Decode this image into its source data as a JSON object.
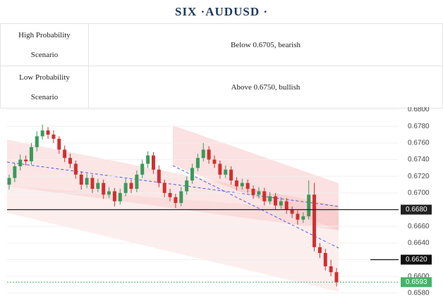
{
  "title": "SIX ·AUDUSD ·",
  "table": {
    "rows": [
      [
        "High Probability Scenario",
        "Below 0.6705, bearish"
      ],
      [
        "Low Probability Scenario",
        "Above 0.6750, bullish"
      ]
    ]
  },
  "chart_data": {
    "type": "candlestick",
    "ylim": [
      0.6568,
      0.6803
    ],
    "yticks": [
      {
        "value": 0.658,
        "label": "0.6580"
      },
      {
        "value": 0.66,
        "label": "0.6600"
      },
      {
        "value": 0.662,
        "label": "0.6620"
      },
      {
        "value": 0.664,
        "label": "0.6640"
      },
      {
        "value": 0.666,
        "label": "0.6660"
      },
      {
        "value": 0.668,
        "label": "0.6680"
      },
      {
        "value": 0.67,
        "label": "0.6700"
      },
      {
        "value": 0.672,
        "label": "0.6720"
      },
      {
        "value": 0.674,
        "label": "0.6740"
      },
      {
        "value": 0.676,
        "label": "0.6760"
      },
      {
        "value": 0.678,
        "label": "0.6780"
      },
      {
        "value": 0.68,
        "label": "0.6800"
      }
    ],
    "grid": true,
    "up_color": "#3a9a5b",
    "down_color": "#d0302f",
    "ohlc": [
      [
        0.671,
        0.6722,
        0.6704,
        0.6718
      ],
      [
        0.6718,
        0.6736,
        0.6713,
        0.6732
      ],
      [
        0.6732,
        0.6746,
        0.6727,
        0.674
      ],
      [
        0.674,
        0.6745,
        0.6733,
        0.6738
      ],
      [
        0.6738,
        0.676,
        0.6734,
        0.6755
      ],
      [
        0.6755,
        0.6774,
        0.675,
        0.6768
      ],
      [
        0.6768,
        0.6782,
        0.6764,
        0.6775
      ],
      [
        0.6775,
        0.6779,
        0.6765,
        0.677
      ],
      [
        0.677,
        0.6775,
        0.676,
        0.6765
      ],
      [
        0.6765,
        0.6768,
        0.6747,
        0.6752
      ],
      [
        0.6752,
        0.6757,
        0.6737,
        0.6742
      ],
      [
        0.6742,
        0.6747,
        0.673,
        0.6735
      ],
      [
        0.6735,
        0.6739,
        0.6717,
        0.6722
      ],
      [
        0.6722,
        0.6726,
        0.6704,
        0.671
      ],
      [
        0.671,
        0.6723,
        0.6706,
        0.6718
      ],
      [
        0.6718,
        0.6722,
        0.67,
        0.6705
      ],
      [
        0.6705,
        0.6717,
        0.6701,
        0.6712
      ],
      [
        0.6712,
        0.6716,
        0.6693,
        0.6698
      ],
      [
        0.6698,
        0.6707,
        0.6694,
        0.6702
      ],
      [
        0.6702,
        0.6706,
        0.6684,
        0.669
      ],
      [
        0.669,
        0.6705,
        0.6686,
        0.67
      ],
      [
        0.67,
        0.6717,
        0.6696,
        0.6712
      ],
      [
        0.6712,
        0.6716,
        0.67,
        0.6705
      ],
      [
        0.6705,
        0.6727,
        0.6701,
        0.6722
      ],
      [
        0.6722,
        0.674,
        0.6718,
        0.6735
      ],
      [
        0.6735,
        0.675,
        0.673,
        0.6745
      ],
      [
        0.6745,
        0.6749,
        0.6723,
        0.6728
      ],
      [
        0.6728,
        0.6733,
        0.6707,
        0.6712
      ],
      [
        0.6712,
        0.6716,
        0.6695,
        0.67
      ],
      [
        0.67,
        0.6705,
        0.669,
        0.6695
      ],
      [
        0.6695,
        0.6699,
        0.6682,
        0.6688
      ],
      [
        0.6688,
        0.6707,
        0.6684,
        0.6702
      ],
      [
        0.6702,
        0.672,
        0.6698,
        0.6715
      ],
      [
        0.6715,
        0.6735,
        0.6711,
        0.673
      ],
      [
        0.673,
        0.6747,
        0.6726,
        0.6742
      ],
      [
        0.6742,
        0.676,
        0.6738,
        0.6752
      ],
      [
        0.6752,
        0.6756,
        0.6735,
        0.674
      ],
      [
        0.674,
        0.6745,
        0.673,
        0.6735
      ],
      [
        0.6735,
        0.6739,
        0.6717,
        0.6722
      ],
      [
        0.6722,
        0.6733,
        0.6718,
        0.6728
      ],
      [
        0.6728,
        0.6732,
        0.671,
        0.6715
      ],
      [
        0.6715,
        0.6719,
        0.6703,
        0.6708
      ],
      [
        0.6708,
        0.6717,
        0.6704,
        0.6712
      ],
      [
        0.6712,
        0.6716,
        0.67,
        0.6705
      ],
      [
        0.6705,
        0.6709,
        0.6693,
        0.6698
      ],
      [
        0.6698,
        0.6707,
        0.6694,
        0.6702
      ],
      [
        0.6702,
        0.6706,
        0.6685,
        0.669
      ],
      [
        0.669,
        0.6701,
        0.6686,
        0.6696
      ],
      [
        0.6696,
        0.67,
        0.668,
        0.6685
      ],
      [
        0.6685,
        0.6695,
        0.6681,
        0.669
      ],
      [
        0.669,
        0.6694,
        0.6675,
        0.668
      ],
      [
        0.668,
        0.6684,
        0.667,
        0.6675
      ],
      [
        0.6675,
        0.6679,
        0.6662,
        0.6668
      ],
      [
        0.6668,
        0.6677,
        0.6664,
        0.6672
      ],
      [
        0.6672,
        0.6715,
        0.6668,
        0.6698
      ],
      [
        0.6698,
        0.6712,
        0.663,
        0.6635
      ],
      [
        0.6635,
        0.664,
        0.6622,
        0.6628
      ],
      [
        0.6628,
        0.6633,
        0.6607,
        0.6612
      ],
      [
        0.6612,
        0.662,
        0.66,
        0.6605
      ],
      [
        0.6605,
        0.661,
        0.6588,
        0.6593
      ]
    ],
    "levels": [
      {
        "value": 0.668,
        "label": "0.6680",
        "style": "full",
        "color": "#222222"
      },
      {
        "value": 0.662,
        "label": "0.6620",
        "style": "short",
        "color": "#111111"
      },
      {
        "value": 0.6593,
        "label": "0.6593",
        "style": "dotted",
        "color": "#4caf6a"
      }
    ]
  }
}
